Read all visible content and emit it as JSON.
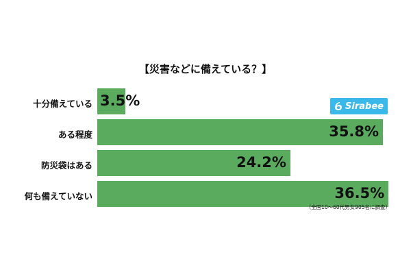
{
  "chart_data": {
    "type": "bar",
    "title": "【災害などに備えている？】",
    "categories": [
      "十分備えている",
      "ある程度",
      "防災袋はある",
      "何も備えていない"
    ],
    "values": [
      3.5,
      35.8,
      24.2,
      36.5
    ],
    "value_labels": [
      "3.5%",
      "35.8%",
      "24.2%",
      "36.5%"
    ],
    "unit": "%",
    "orientation": "horizontal",
    "grid": false,
    "xlabel": "",
    "ylabel": "",
    "bar_color": "#5aab5e"
  },
  "logo": {
    "text": "Sirabee",
    "color": "#3bb8ea"
  },
  "source": "（全国10～60代男女905名に調査）"
}
